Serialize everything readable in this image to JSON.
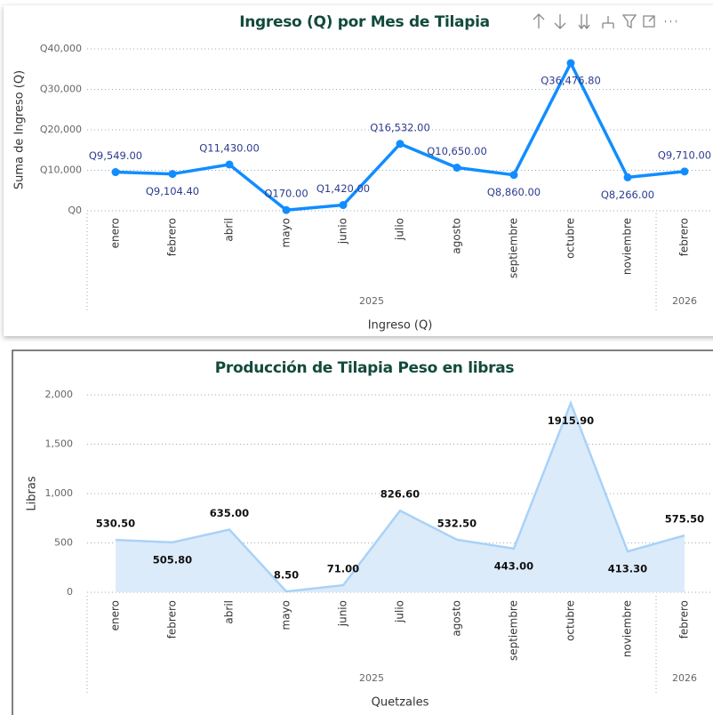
{
  "chart_data": [
    {
      "type": "line",
      "title": "Ingreso (Q) por Mes de Tilapia",
      "y_label": "Suma de Ingreso (Q)",
      "x_label": "Ingreso (Q)",
      "category_groups": [
        {
          "name": "2025",
          "categories": [
            "enero",
            "febrero",
            "abril",
            "mayo",
            "junio",
            "julio",
            "agosto",
            "septiembre",
            "octubre",
            "noviembre"
          ]
        },
        {
          "name": "2026",
          "categories": [
            "febrero"
          ]
        }
      ],
      "series": [
        {
          "name": "Suma de Ingreso (Q)",
          "color": "#118dff",
          "values": [
            9549,
            9104.4,
            11430,
            170,
            1420,
            16532,
            10650,
            8860,
            36476.8,
            8266,
            9710
          ],
          "value_labels": [
            "Q9,549.00",
            "Q9,104.40",
            "Q11,430.00",
            "Q170.00",
            "Q1,420.00",
            "Q16,532.00",
            "Q10,650.00",
            "Q8,860.00",
            "Q36,476.80",
            "Q8,266.00",
            "Q9,710.00"
          ]
        }
      ],
      "ylim": [
        0,
        40000
      ],
      "yticks": [
        {
          "value": 0,
          "label": "Q0"
        },
        {
          "value": 10000,
          "label": "Q10,000"
        },
        {
          "value": 20000,
          "label": "Q20,000"
        },
        {
          "value": 30000,
          "label": "Q30,000"
        },
        {
          "value": 40000,
          "label": "Q40,000"
        }
      ],
      "grid": true
    },
    {
      "type": "area",
      "title": "Producción de Tilapia Peso en libras",
      "y_label": "Libras",
      "x_label": "Quetzales",
      "category_groups": [
        {
          "name": "2025",
          "categories": [
            "enero",
            "febrero",
            "abril",
            "mayo",
            "junio",
            "julio",
            "agosto",
            "septiembre",
            "octubre",
            "noviembre"
          ]
        },
        {
          "name": "2026",
          "categories": [
            "febrero"
          ]
        }
      ],
      "series": [
        {
          "name": "Libras",
          "color": "#a9d2f7",
          "values": [
            530.5,
            505.8,
            635,
            8.5,
            71,
            826.6,
            532.5,
            443,
            1915.9,
            413.3,
            575.5
          ],
          "value_labels": [
            "530.50",
            "505.80",
            "635.00",
            "8.50",
            "71.00",
            "826.60",
            "532.50",
            "443.00",
            "1915.90",
            "413.30",
            "575.50"
          ]
        }
      ],
      "ylim": [
        0,
        2000
      ],
      "yticks": [
        0,
        500,
        {
          "value": 1000,
          "label": "1,000"
        },
        {
          "value": 1500,
          "label": "1,500"
        },
        {
          "value": 2000,
          "label": "2,000"
        }
      ],
      "grid": true
    }
  ]
}
